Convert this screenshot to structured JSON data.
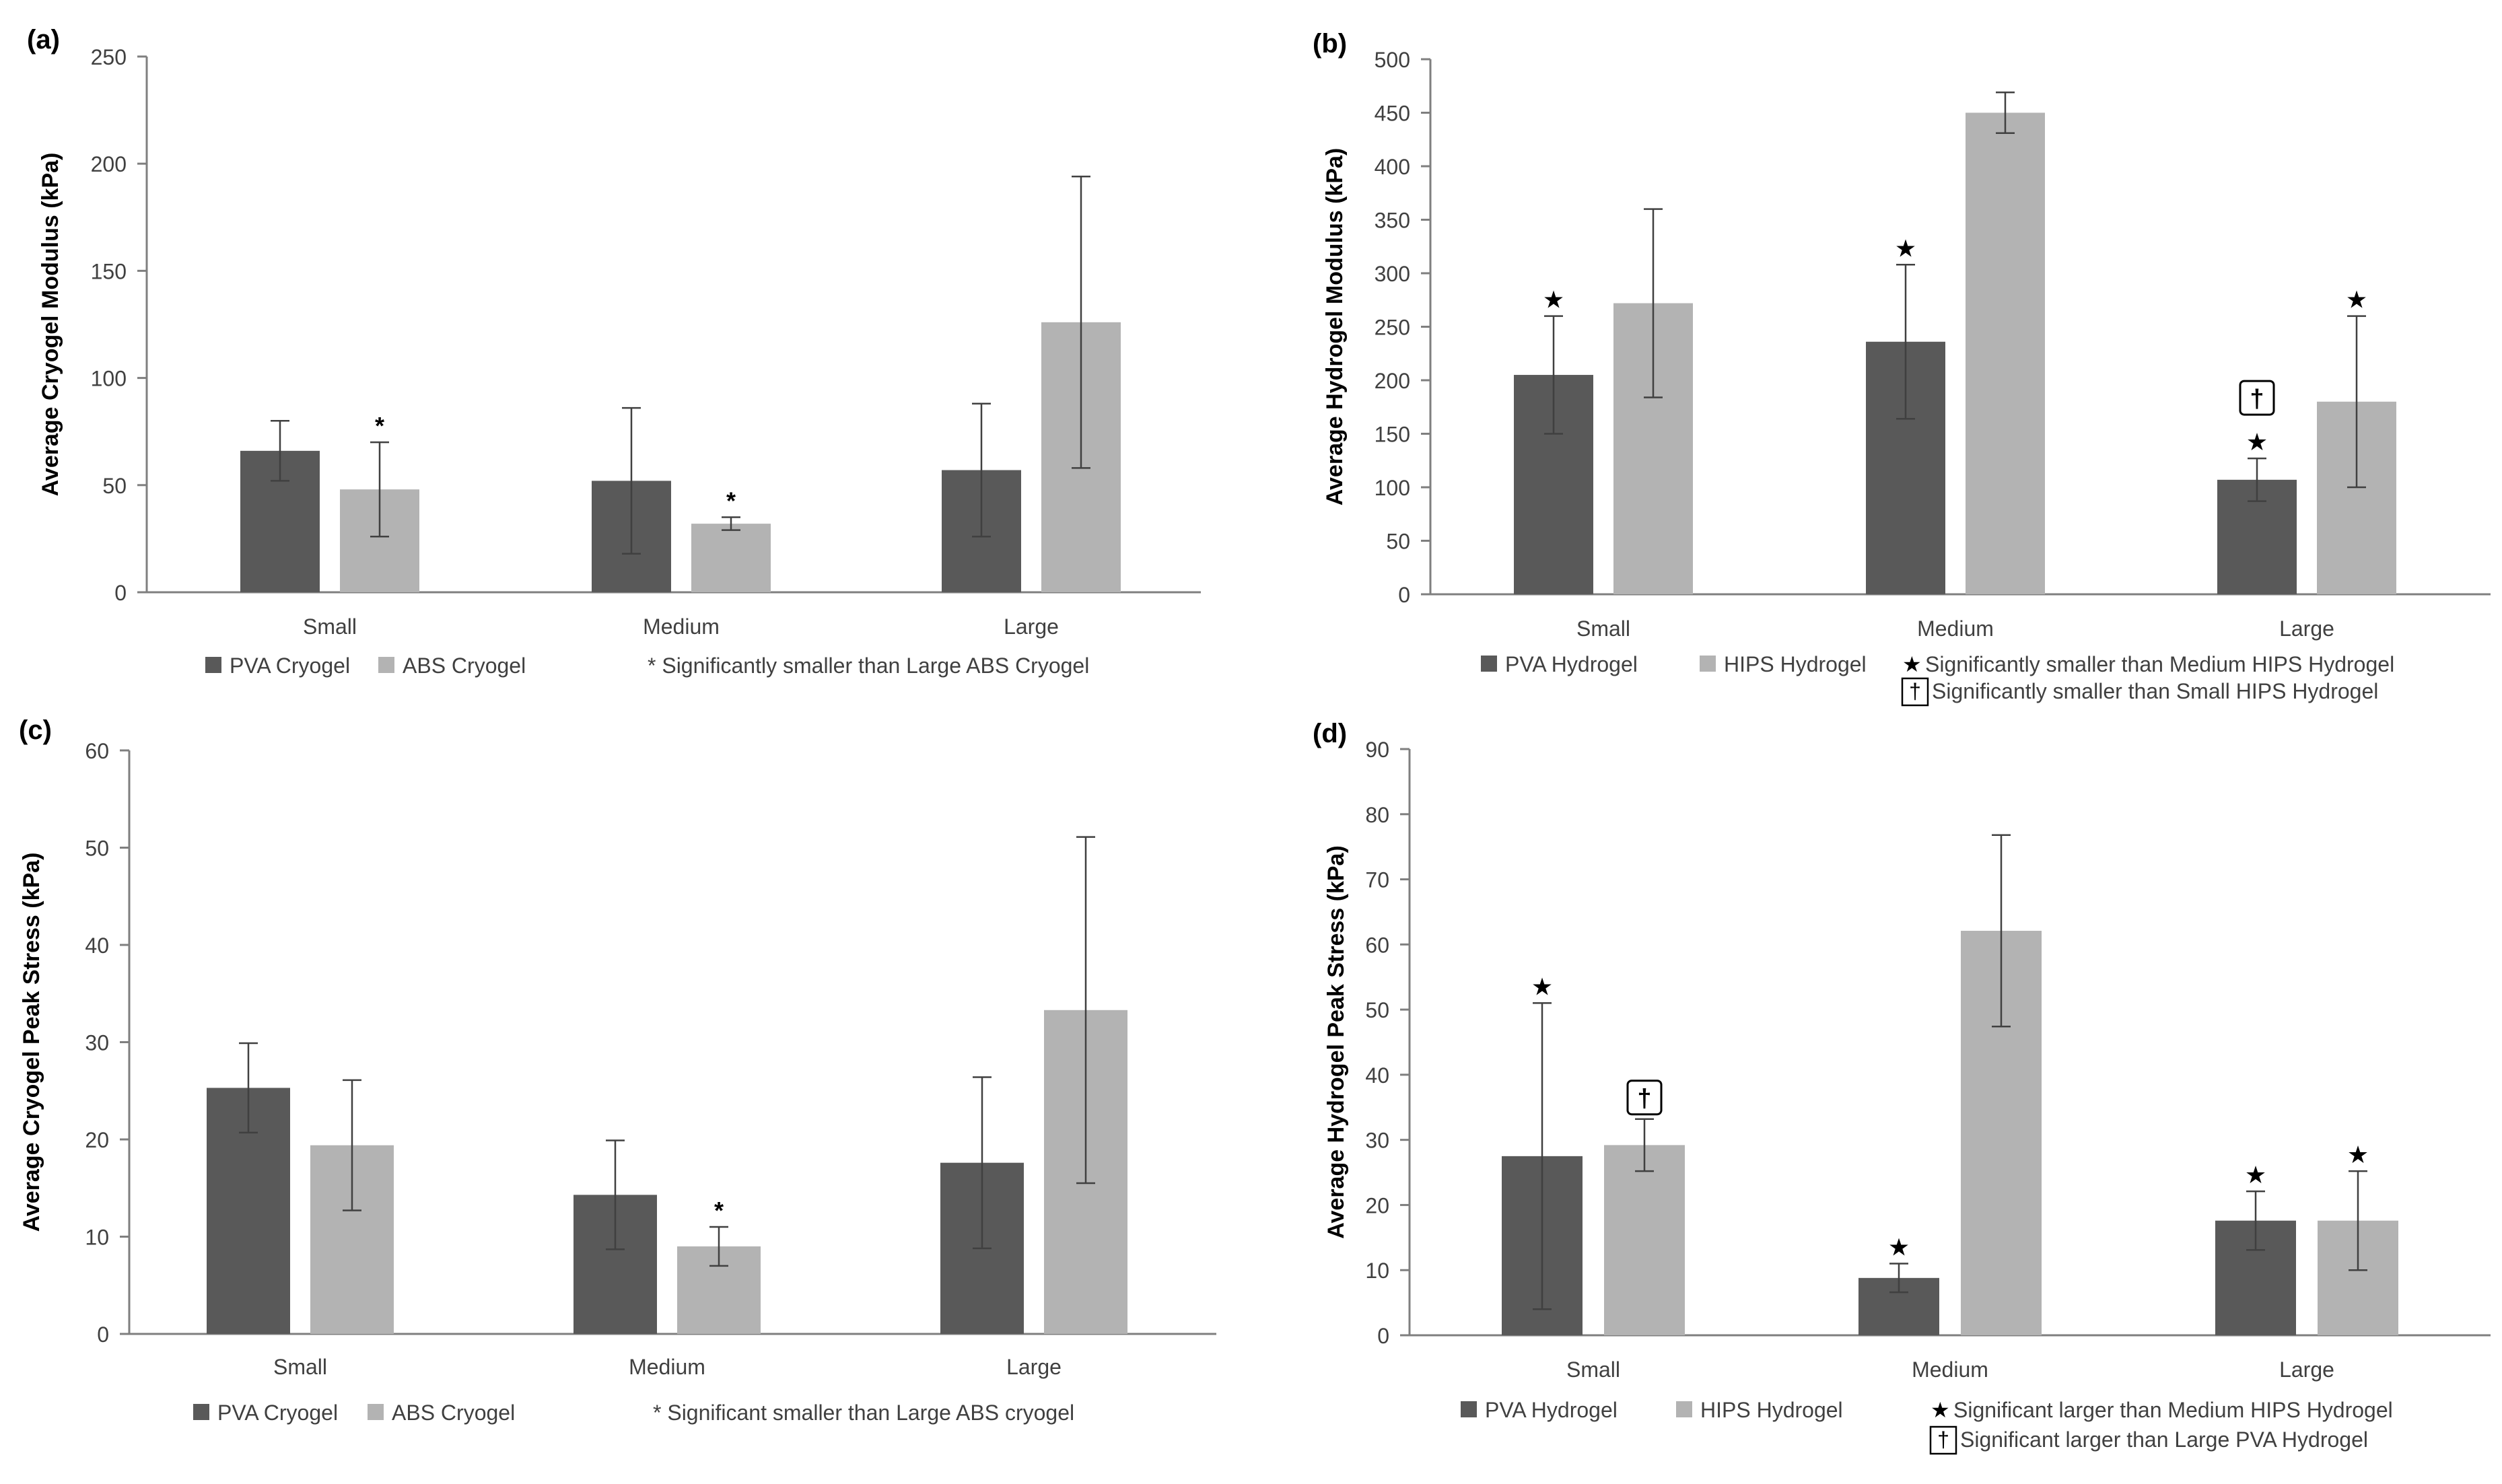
{
  "colors": {
    "series1": "#595959",
    "series2": "#b3b3b3",
    "axis": "#7f7f7f",
    "text": "#404040",
    "black": "#000000"
  },
  "chart_data": [
    {
      "panel": "(a)",
      "type": "bar",
      "categories": [
        "Small",
        "Medium",
        "Large"
      ],
      "ylabel": "Average Cryogel Modulus (kPa)",
      "ylim": [
        0,
        250
      ],
      "yticks": [
        "0",
        "50",
        "100",
        "150",
        "200",
        "250"
      ],
      "series": [
        {
          "name": "PVA Cryogel",
          "values": [
            66,
            52,
            57
          ],
          "errors": [
            14,
            34,
            31
          ]
        },
        {
          "name": "ABS Cryogel",
          "values": [
            48,
            32,
            126
          ],
          "errors": [
            22,
            3,
            68
          ]
        }
      ],
      "marks": [
        {
          "series": 1,
          "category": 0,
          "glyph": "*",
          "boxed": false
        },
        {
          "series": 1,
          "category": 1,
          "glyph": "*",
          "boxed": false
        }
      ],
      "note_lines": [
        [
          {
            "glyph": "",
            "boxed": false,
            "text": "* Significantly smaller than Large ABS Cryogel"
          }
        ]
      ]
    },
    {
      "panel": "(b)",
      "type": "bar",
      "categories": [
        "Small",
        "Medium",
        "Large"
      ],
      "ylabel": "Average Hydrogel  Modulus (kPa)",
      "ylim": [
        0,
        500
      ],
      "yticks": [
        "0",
        "50",
        "100",
        "150",
        "200",
        "250",
        "300",
        "350",
        "400",
        "450",
        "500"
      ],
      "series": [
        {
          "name": "PVA Hydrogel",
          "values": [
            205,
            236,
            107
          ],
          "errors": [
            55,
            72,
            20
          ]
        },
        {
          "name": "HIPS Hydrogel",
          "values": [
            272,
            450,
            180
          ],
          "errors": [
            88,
            19,
            80
          ]
        }
      ],
      "marks": [
        {
          "series": 0,
          "category": 0,
          "glyph": "★",
          "boxed": false
        },
        {
          "series": 0,
          "category": 1,
          "glyph": "★",
          "boxed": false
        },
        {
          "series": 0,
          "category": 2,
          "glyph": "★",
          "boxed": false
        },
        {
          "series": 0,
          "category": 2,
          "glyph": "†",
          "boxed": true
        },
        {
          "series": 1,
          "category": 2,
          "glyph": "★",
          "boxed": false
        }
      ],
      "note_lines": [
        [
          {
            "glyph": "★",
            "boxed": false,
            "text": "Significantly smaller than Medium HIPS Hydrogel"
          }
        ],
        [
          {
            "glyph": "†",
            "boxed": true,
            "text": "Significantly smaller than Small HIPS Hydrogel"
          }
        ]
      ]
    },
    {
      "panel": "(c)",
      "type": "bar",
      "categories": [
        "Small",
        "Medium",
        "Large"
      ],
      "ylabel": "Average Cryogel Peak Stress (kPa)",
      "ylim": [
        0,
        60
      ],
      "yticks": [
        "0",
        "10",
        "20",
        "30",
        "40",
        "50",
        "60"
      ],
      "series": [
        {
          "name": "PVA Cryogel",
          "values": [
            25.3,
            14.3,
            17.6
          ],
          "errors": [
            4.6,
            5.6,
            8.8
          ]
        },
        {
          "name": "ABS Cryogel",
          "values": [
            19.4,
            9.0,
            33.3
          ],
          "errors": [
            6.7,
            2.0,
            17.8
          ]
        }
      ],
      "marks": [
        {
          "series": 1,
          "category": 1,
          "glyph": "*",
          "boxed": false
        }
      ],
      "note_lines": [
        [
          {
            "glyph": "",
            "boxed": false,
            "text": "* Significant smaller than Large ABS cryogel"
          }
        ]
      ]
    },
    {
      "panel": "(d)",
      "type": "bar",
      "categories": [
        "Small",
        "Medium",
        "Large"
      ],
      "ylabel": "Average Hydrogel Peak Stress (kPa)",
      "ylim": [
        0,
        90
      ],
      "yticks": [
        "0",
        "10",
        "20",
        "30",
        "40",
        "50",
        "60",
        "70",
        "80",
        "90"
      ],
      "series": [
        {
          "name": "PVA Hydrogel",
          "values": [
            27.5,
            8.8,
            17.6
          ],
          "errors": [
            23.5,
            2.2,
            4.5
          ]
        },
        {
          "name": "HIPS Hydrogel",
          "values": [
            29.2,
            62.1,
            17.6
          ],
          "errors": [
            4.0,
            14.7,
            7.6
          ]
        }
      ],
      "marks": [
        {
          "series": 0,
          "category": 0,
          "glyph": "★",
          "boxed": false
        },
        {
          "series": 1,
          "category": 0,
          "glyph": "†",
          "boxed": true
        },
        {
          "series": 0,
          "category": 1,
          "glyph": "★",
          "boxed": false
        },
        {
          "series": 0,
          "category": 2,
          "glyph": "★",
          "boxed": false
        },
        {
          "series": 1,
          "category": 2,
          "glyph": "★",
          "boxed": false
        }
      ],
      "note_lines": [
        [
          {
            "glyph": "★",
            "boxed": false,
            "text": "Significant larger than Medium HIPS Hydrogel"
          }
        ],
        [
          {
            "glyph": "†",
            "boxed": true,
            "text": "Significant larger than Large PVA Hydrogel"
          }
        ]
      ]
    }
  ]
}
